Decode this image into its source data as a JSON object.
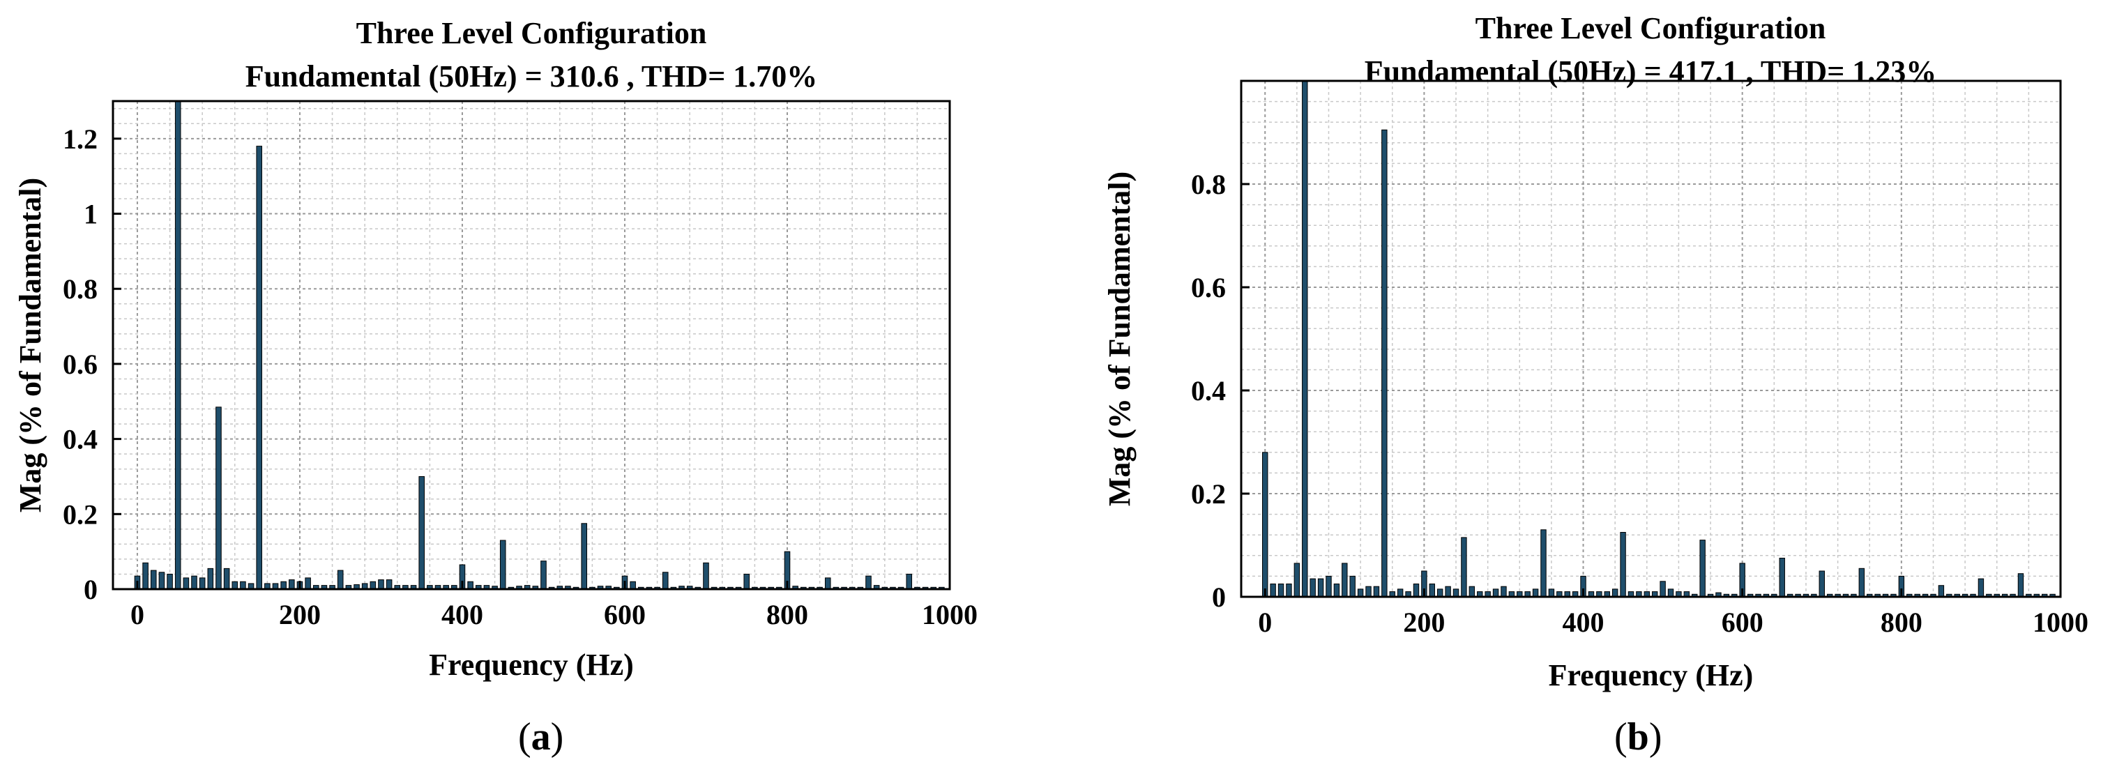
{
  "chart_data": [
    {
      "type": "bar",
      "panel_label": "a",
      "title": "Three Level Configuration",
      "subtitle": "Fundamental (50Hz) = 310.6 , THD= 1.70%",
      "xlabel": "Frequency (Hz)",
      "ylabel": "Mag (% of Fundamental)",
      "xlim": [
        -30,
        1000
      ],
      "ylim": [
        0,
        1.3
      ],
      "xticks": [
        0,
        200,
        400,
        600,
        800,
        1000
      ],
      "yticks": [
        0,
        0.2,
        0.4,
        0.6,
        0.8,
        1,
        1.2
      ],
      "xticklabels": [
        "0",
        "200",
        "400",
        "600",
        "800",
        "1000"
      ],
      "yticklabels": [
        "0",
        "0.2",
        "0.4",
        "0.6",
        "0.8",
        "1",
        "1.2"
      ],
      "grid": true,
      "bar_color": "#1f4e6b",
      "x": [
        0,
        10,
        20,
        30,
        40,
        50,
        60,
        70,
        80,
        90,
        100,
        110,
        120,
        130,
        140,
        150,
        160,
        170,
        180,
        190,
        200,
        210,
        220,
        230,
        240,
        250,
        260,
        270,
        280,
        290,
        300,
        310,
        320,
        330,
        340,
        350,
        360,
        370,
        380,
        390,
        400,
        410,
        420,
        430,
        440,
        450,
        460,
        470,
        480,
        490,
        500,
        510,
        520,
        530,
        540,
        550,
        560,
        570,
        580,
        590,
        600,
        610,
        620,
        630,
        640,
        650,
        660,
        670,
        680,
        690,
        700,
        710,
        720,
        730,
        740,
        750,
        760,
        770,
        780,
        790,
        800,
        810,
        820,
        830,
        840,
        850,
        860,
        870,
        880,
        890,
        900,
        910,
        920,
        930,
        940,
        950,
        960,
        970,
        980,
        990
      ],
      "values": [
        0.035,
        0.07,
        0.05,
        0.045,
        0.04,
        1.3,
        0.03,
        0.035,
        0.03,
        0.055,
        0.485,
        0.055,
        0.02,
        0.02,
        0.015,
        1.18,
        0.015,
        0.015,
        0.02,
        0.025,
        0.02,
        0.03,
        0.01,
        0.01,
        0.01,
        0.05,
        0.01,
        0.012,
        0.015,
        0.02,
        0.025,
        0.025,
        0.01,
        0.01,
        0.01,
        0.3,
        0.01,
        0.01,
        0.01,
        0.01,
        0.065,
        0.02,
        0.01,
        0.01,
        0.008,
        0.13,
        0.005,
        0.008,
        0.01,
        0.008,
        0.075,
        0.005,
        0.008,
        0.008,
        0.005,
        0.175,
        0.005,
        0.008,
        0.008,
        0.005,
        0.035,
        0.02,
        0.005,
        0.005,
        0.005,
        0.045,
        0.005,
        0.008,
        0.008,
        0.005,
        0.07,
        0.005,
        0.005,
        0.005,
        0.005,
        0.04,
        0.005,
        0.005,
        0.005,
        0.005,
        0.1,
        0.008,
        0.005,
        0.005,
        0.005,
        0.03,
        0.005,
        0.005,
        0.005,
        0.005,
        0.035,
        0.01,
        0.005,
        0.005,
        0.005,
        0.04,
        0.005,
        0.005,
        0.005,
        0.005
      ]
    },
    {
      "type": "bar",
      "panel_label": "b",
      "title": "Three Level Configuration",
      "subtitle": "Fundamental (50Hz) = 417.1 , THD= 1.23%",
      "xlabel": "Frequency (Hz)",
      "ylabel": "Mag (% of Fundamental)",
      "xlim": [
        -30,
        1000
      ],
      "ylim": [
        0,
        1.0
      ],
      "xticks": [
        0,
        200,
        400,
        600,
        800,
        1000
      ],
      "yticks": [
        0,
        0.2,
        0.4,
        0.6,
        0.8
      ],
      "xticklabels": [
        "0",
        "200",
        "400",
        "600",
        "800",
        "1000"
      ],
      "yticklabels": [
        "0",
        "0.2",
        "0.4",
        "0.6",
        "0.8"
      ],
      "grid": true,
      "bar_color": "#1f4e6b",
      "x": [
        0,
        10,
        20,
        30,
        40,
        50,
        60,
        70,
        80,
        90,
        100,
        110,
        120,
        130,
        140,
        150,
        160,
        170,
        180,
        190,
        200,
        210,
        220,
        230,
        240,
        250,
        260,
        270,
        280,
        290,
        300,
        310,
        320,
        330,
        340,
        350,
        360,
        370,
        380,
        390,
        400,
        410,
        420,
        430,
        440,
        450,
        460,
        470,
        480,
        490,
        500,
        510,
        520,
        530,
        540,
        550,
        560,
        570,
        580,
        590,
        600,
        610,
        620,
        630,
        640,
        650,
        660,
        670,
        680,
        690,
        700,
        710,
        720,
        730,
        740,
        750,
        760,
        770,
        780,
        790,
        800,
        810,
        820,
        830,
        840,
        850,
        860,
        870,
        880,
        890,
        900,
        910,
        920,
        930,
        940,
        950,
        960,
        970,
        980,
        990
      ],
      "values": [
        0.28,
        0.025,
        0.025,
        0.025,
        0.065,
        1.0,
        0.035,
        0.035,
        0.04,
        0.025,
        0.065,
        0.04,
        0.015,
        0.02,
        0.02,
        0.905,
        0.01,
        0.015,
        0.01,
        0.025,
        0.05,
        0.025,
        0.015,
        0.02,
        0.015,
        0.115,
        0.02,
        0.01,
        0.01,
        0.015,
        0.02,
        0.01,
        0.01,
        0.01,
        0.015,
        0.13,
        0.015,
        0.01,
        0.01,
        0.01,
        0.04,
        0.01,
        0.01,
        0.01,
        0.015,
        0.125,
        0.01,
        0.01,
        0.01,
        0.01,
        0.03,
        0.015,
        0.01,
        0.01,
        0.005,
        0.11,
        0.005,
        0.008,
        0.005,
        0.005,
        0.065,
        0.005,
        0.005,
        0.005,
        0.005,
        0.075,
        0.005,
        0.005,
        0.005,
        0.005,
        0.05,
        0.005,
        0.005,
        0.005,
        0.005,
        0.055,
        0.005,
        0.005,
        0.005,
        0.005,
        0.04,
        0.005,
        0.005,
        0.005,
        0.005,
        0.022,
        0.005,
        0.005,
        0.005,
        0.005,
        0.035,
        0.005,
        0.005,
        0.005,
        0.005,
        0.045,
        0.005,
        0.005,
        0.005,
        0.005
      ]
    }
  ]
}
